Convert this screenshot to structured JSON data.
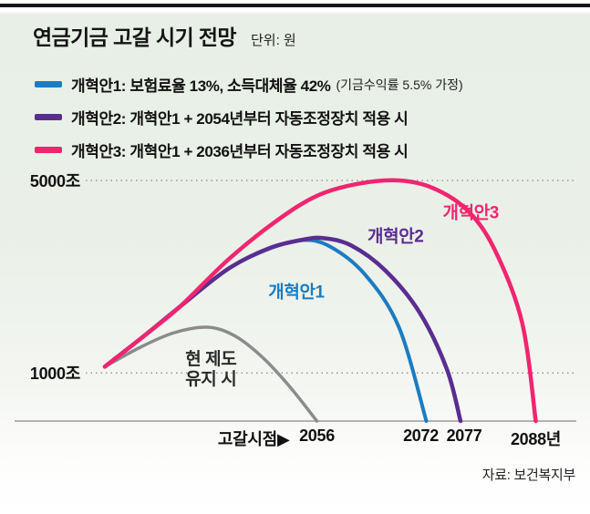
{
  "header": {
    "title": "연금기금 고갈 시기 전망",
    "unit": "단위: 원"
  },
  "legend": {
    "position": "top-left",
    "items": [
      {
        "label": "개혁안1: 보험료율 13%, 소득대체율 42%",
        "note": "(기금수익률 5.5% 가정)",
        "color": "#1b7cc2"
      },
      {
        "label": "개혁안2: 개혁안1 + 2054년부터 자동조정장치 적용 시",
        "note": "",
        "color": "#5a2d90"
      },
      {
        "label": "개혁안3: 개혁안1 + 2036년부터 자동조정장치 적용 시",
        "note": "",
        "color": "#f0256f"
      }
    ]
  },
  "chart_data": {
    "type": "line",
    "title": "연금기금 고갈 시기 전망",
    "unit_label": "단위: 원",
    "value_unit": "조 원",
    "xlim": [
      2025,
      2094
    ],
    "ylim": [
      0,
      5300
    ],
    "grid": "dotted-horizontal",
    "y_ticks": [
      {
        "value": 5000,
        "label": "5000조"
      },
      {
        "value": 1000,
        "label": "1000조"
      }
    ],
    "x_axis": {
      "prefix": "고갈시점▶",
      "ticks": [
        {
          "label": "2056",
          "year": 2056,
          "dx": 0
        },
        {
          "label": "2072",
          "year": 2072,
          "dx": -6
        },
        {
          "label": "2077",
          "year": 2077,
          "dx": 4
        },
        {
          "label": "2088년",
          "year": 2088,
          "dx": 0
        }
      ]
    },
    "series": [
      {
        "name": "현 제도 유지 시",
        "label_lines": [
          "현 제도",
          "유지 시"
        ],
        "color": "#8b8b8b",
        "label_color": "#2b2b2b",
        "width": 3.5,
        "label_anchor": [
          2040.5,
          1050
        ],
        "depletion_year": 2056,
        "peak": {
          "year": 2040,
          "value": 1950
        },
        "points": [
          [
            2025,
            1130
          ],
          [
            2030,
            1520
          ],
          [
            2035,
            1830
          ],
          [
            2040,
            1950
          ],
          [
            2044,
            1770
          ],
          [
            2048,
            1330
          ],
          [
            2052,
            720
          ],
          [
            2056,
            0
          ]
        ]
      },
      {
        "name": "개혁안1",
        "label_lines": [
          "개혁안1"
        ],
        "color": "#1b7cc2",
        "label_color": "#1b7cc2",
        "width": 4,
        "label_anchor": [
          2053,
          2650
        ],
        "depletion_year": 2072,
        "peak": {
          "year": 2054,
          "value": 3760
        },
        "points": [
          [
            2025,
            1130
          ],
          [
            2031,
            1800
          ],
          [
            2036,
            2380
          ],
          [
            2043,
            3160
          ],
          [
            2049,
            3580
          ],
          [
            2054,
            3760
          ],
          [
            2058,
            3620
          ],
          [
            2063,
            3050
          ],
          [
            2068,
            1950
          ],
          [
            2072,
            0
          ]
        ]
      },
      {
        "name": "개혁안2",
        "label_lines": [
          "개혁안2"
        ],
        "color": "#5a2d90",
        "label_color": "#5a2d90",
        "width": 4.5,
        "label_anchor": [
          2067.5,
          3800
        ],
        "depletion_year": 2077,
        "peak": {
          "year": 2057,
          "value": 3800
        },
        "points": [
          [
            2025,
            1130
          ],
          [
            2031,
            1800
          ],
          [
            2036,
            2380
          ],
          [
            2043,
            3160
          ],
          [
            2049,
            3590
          ],
          [
            2054,
            3770
          ],
          [
            2057,
            3800
          ],
          [
            2061,
            3650
          ],
          [
            2066,
            3130
          ],
          [
            2071,
            2260
          ],
          [
            2075,
            1080
          ],
          [
            2077,
            0
          ]
        ]
      },
      {
        "name": "개혁안3",
        "label_lines": [
          "개혁안3"
        ],
        "color": "#f0256f",
        "label_color": "#f0256f",
        "width": 4.5,
        "label_anchor": [
          2078.5,
          4300
        ],
        "depletion_year": 2088,
        "peak": {
          "year": 2068,
          "value": 5000
        },
        "points": [
          [
            2025,
            1130
          ],
          [
            2031,
            1800
          ],
          [
            2036,
            2380
          ],
          [
            2043,
            3350
          ],
          [
            2050,
            4150
          ],
          [
            2056,
            4680
          ],
          [
            2062,
            4930
          ],
          [
            2068,
            5000
          ],
          [
            2073,
            4840
          ],
          [
            2078,
            4380
          ],
          [
            2082,
            3560
          ],
          [
            2086,
            2050
          ],
          [
            2088,
            0
          ]
        ]
      }
    ]
  },
  "source": "자료: 보건복지부"
}
